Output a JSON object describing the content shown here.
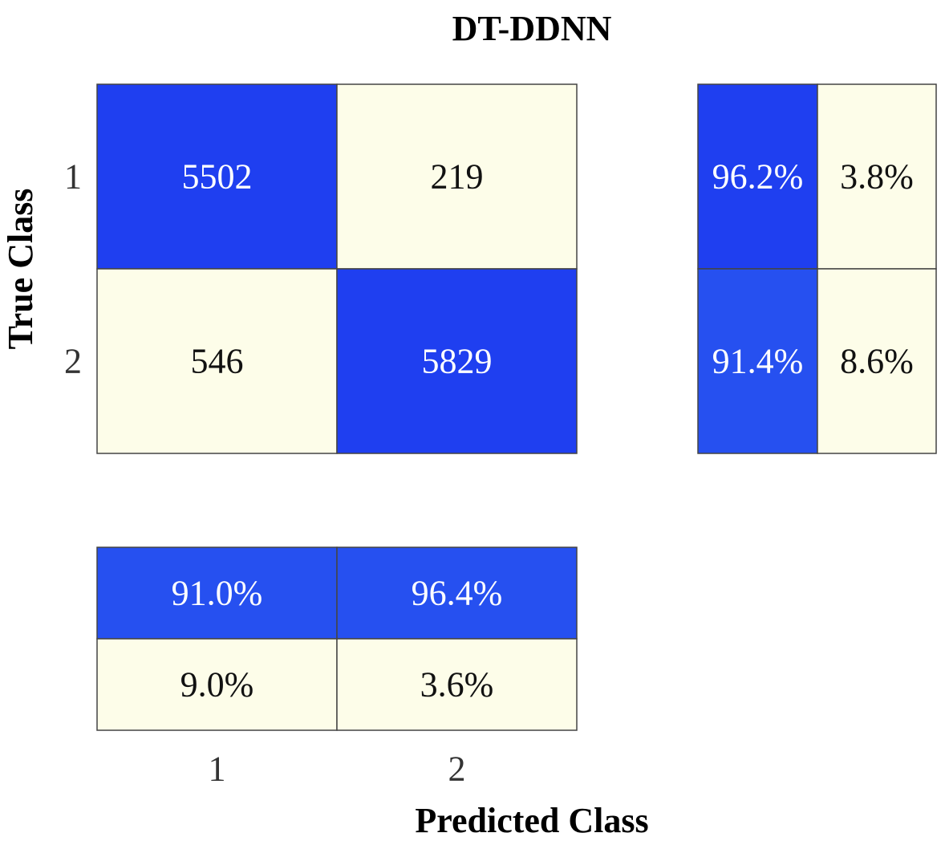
{
  "chart_data": {
    "type": "heatmap",
    "title": "DT-DDNN",
    "xlabel": "Predicted Class",
    "ylabel": "True Class",
    "row_labels": [
      "1",
      "2"
    ],
    "col_labels": [
      "1",
      "2"
    ],
    "matrix": [
      [
        5502,
        219
      ],
      [
        546,
        5829
      ]
    ],
    "matrix_text": [
      [
        "5502",
        "219"
      ],
      [
        "546",
        "5829"
      ]
    ],
    "row_summary": [
      {
        "correct": 96.2,
        "incorrect": 3.8,
        "correct_text": "96.2%",
        "incorrect_text": "3.8%"
      },
      {
        "correct": 91.4,
        "incorrect": 8.6,
        "correct_text": "91.4%",
        "incorrect_text": "8.6%"
      }
    ],
    "column_summary": [
      {
        "correct": 91.0,
        "incorrect": 9.0,
        "correct_text": "91.0%",
        "incorrect_text": "9.0%"
      },
      {
        "correct": 96.4,
        "incorrect": 3.6,
        "correct_text": "96.4%",
        "incorrect_text": "3.6%"
      }
    ],
    "colors": {
      "high": "#1f3ff0",
      "high_alt": "#2650f0",
      "low": "#fdfde9",
      "grid": "#444444",
      "text_dark": "#111111",
      "text_light": "#ffffff"
    }
  }
}
